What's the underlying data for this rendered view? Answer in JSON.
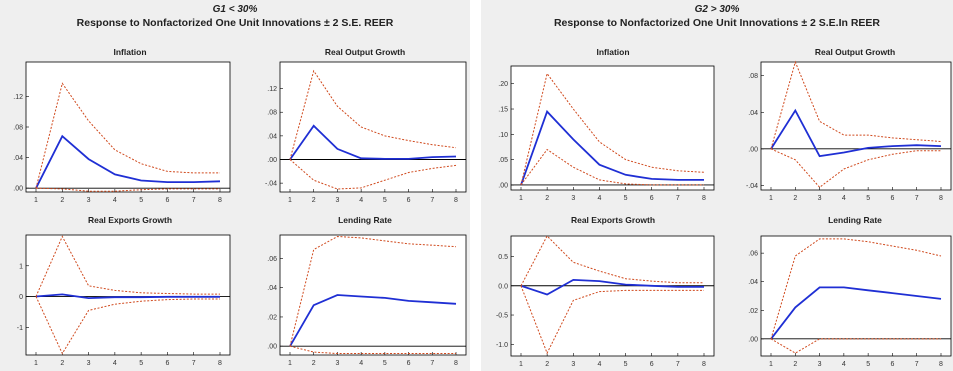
{
  "groups": [
    {
      "id": "left",
      "title": "G1 < 30%",
      "subtitle": "Response to Nonfactorized One Unit Innovations ± 2 S.E. REER"
    },
    {
      "id": "right",
      "title": "G2 > 30%",
      "subtitle": "Response to Nonfactorized One Unit Innovations ± 2 S.E.In REER"
    }
  ],
  "colors": {
    "response": "#1f2fd4",
    "band": "#d04a1e",
    "zero": "#000000",
    "frame": "#000000",
    "panel_bg": "#ffffff"
  },
  "chart_data": [
    {
      "group": "left",
      "title": "Inflation",
      "type": "line",
      "x": [
        1,
        2,
        3,
        4,
        5,
        6,
        7,
        8
      ],
      "ylim": [
        -0.005,
        0.165
      ],
      "yticks": [
        0,
        0.04,
        0.08,
        0.12
      ],
      "ytick_labels": [
        ".00",
        ".04",
        ".08",
        ".12"
      ],
      "xtick_labels": [
        "1",
        "2",
        "3",
        "4",
        "5",
        "6",
        "7",
        "8"
      ],
      "series": [
        {
          "role": "response",
          "values": [
            0.0,
            0.068,
            0.038,
            0.018,
            0.01,
            0.008,
            0.008,
            0.009
          ]
        },
        {
          "role": "upper",
          "values": [
            0.0,
            0.137,
            0.088,
            0.05,
            0.032,
            0.022,
            0.02,
            0.02
          ]
        },
        {
          "role": "lower",
          "values": [
            0.0,
            -0.001,
            -0.004,
            -0.004,
            -0.002,
            -0.001,
            -0.001,
            -0.001
          ]
        }
      ]
    },
    {
      "group": "left",
      "title": "Real Output Growth",
      "type": "line",
      "x": [
        1,
        2,
        3,
        4,
        5,
        6,
        7,
        8
      ],
      "ylim": [
        -0.055,
        0.165
      ],
      "yticks": [
        -0.04,
        0.0,
        0.04,
        0.08,
        0.12
      ],
      "ytick_labels": [
        "-.04",
        ".00",
        ".04",
        ".08",
        ".12"
      ],
      "xtick_labels": [
        "1",
        "2",
        "3",
        "4",
        "5",
        "6",
        "7",
        "8"
      ],
      "series": [
        {
          "role": "response",
          "values": [
            0.0,
            0.057,
            0.018,
            0.002,
            0.001,
            0.001,
            0.004,
            0.005
          ]
        },
        {
          "role": "upper",
          "values": [
            0.0,
            0.15,
            0.09,
            0.055,
            0.04,
            0.032,
            0.025,
            0.02
          ]
        },
        {
          "role": "lower",
          "values": [
            0.0,
            -0.035,
            -0.05,
            -0.048,
            -0.035,
            -0.022,
            -0.015,
            -0.01
          ]
        }
      ]
    },
    {
      "group": "left",
      "title": "Real Exports Growth",
      "type": "line",
      "x": [
        1,
        2,
        3,
        4,
        5,
        6,
        7,
        8
      ],
      "ylim": [
        -1.9,
        2.0
      ],
      "yticks": [
        -1,
        0,
        1
      ],
      "ytick_labels": [
        "-1",
        "0",
        "1"
      ],
      "xtick_labels": [
        "1",
        "2",
        "3",
        "4",
        "5",
        "6",
        "7",
        "8"
      ],
      "series": [
        {
          "role": "response",
          "values": [
            0.0,
            0.07,
            -0.05,
            -0.02,
            -0.02,
            -0.01,
            -0.01,
            -0.01
          ]
        },
        {
          "role": "upper",
          "values": [
            0.0,
            1.95,
            0.35,
            0.2,
            0.12,
            0.1,
            0.08,
            0.08
          ]
        },
        {
          "role": "lower",
          "values": [
            0.0,
            -1.85,
            -0.45,
            -0.25,
            -0.15,
            -0.1,
            -0.08,
            -0.08
          ]
        }
      ]
    },
    {
      "group": "left",
      "title": "Lending Rate",
      "type": "line",
      "x": [
        1,
        2,
        3,
        4,
        5,
        6,
        7,
        8
      ],
      "ylim": [
        -0.006,
        0.076
      ],
      "yticks": [
        0,
        0.02,
        0.04,
        0.06
      ],
      "ytick_labels": [
        ".00",
        ".02",
        ".04",
        ".06"
      ],
      "xtick_labels": [
        "1",
        "2",
        "3",
        "4",
        "5",
        "6",
        "7",
        "8"
      ],
      "series": [
        {
          "role": "response",
          "values": [
            0.0,
            0.028,
            0.035,
            0.034,
            0.033,
            0.031,
            0.03,
            0.029
          ]
        },
        {
          "role": "upper",
          "values": [
            0.0,
            0.066,
            0.075,
            0.074,
            0.072,
            0.07,
            0.069,
            0.068
          ]
        },
        {
          "role": "lower",
          "values": [
            0.0,
            -0.004,
            -0.005,
            -0.005,
            -0.005,
            -0.005,
            -0.005,
            -0.005
          ]
        }
      ]
    },
    {
      "group": "right",
      "title": "Inflation",
      "type": "line",
      "x": [
        1,
        2,
        3,
        4,
        5,
        6,
        7,
        8
      ],
      "ylim": [
        -0.01,
        0.235
      ],
      "yticks": [
        0.0,
        0.05,
        0.1,
        0.15,
        0.2
      ],
      "ytick_labels": [
        ".00",
        ".05",
        ".10",
        ".15",
        ".20"
      ],
      "xtick_labels": [
        "1",
        "2",
        "3",
        "4",
        "5",
        "6",
        "7",
        "8"
      ],
      "series": [
        {
          "role": "response",
          "values": [
            0.0,
            0.145,
            0.09,
            0.04,
            0.02,
            0.012,
            0.01,
            0.01
          ]
        },
        {
          "role": "upper",
          "values": [
            0.0,
            0.22,
            0.15,
            0.085,
            0.05,
            0.035,
            0.028,
            0.025
          ]
        },
        {
          "role": "lower",
          "values": [
            0.0,
            0.07,
            0.035,
            0.01,
            0.002,
            0.0,
            0.0,
            0.0
          ]
        }
      ]
    },
    {
      "group": "right",
      "title": "Real Output Growth",
      "type": "line",
      "x": [
        1,
        2,
        3,
        4,
        5,
        6,
        7,
        8
      ],
      "ylim": [
        -0.045,
        0.095
      ],
      "yticks": [
        -0.04,
        0.0,
        0.04,
        0.08
      ],
      "ytick_labels": [
        "-.04",
        ".00",
        ".04",
        ".08"
      ],
      "xtick_labels": [
        "1",
        "2",
        "3",
        "4",
        "5",
        "6",
        "7",
        "8"
      ],
      "series": [
        {
          "role": "response",
          "values": [
            0.0,
            0.042,
            -0.008,
            -0.004,
            0.001,
            0.003,
            0.004,
            0.003
          ]
        },
        {
          "role": "upper",
          "values": [
            0.0,
            0.095,
            0.03,
            0.015,
            0.015,
            0.012,
            0.01,
            0.008
          ]
        },
        {
          "role": "lower",
          "values": [
            0.0,
            -0.012,
            -0.042,
            -0.022,
            -0.012,
            -0.006,
            -0.002,
            -0.002
          ]
        }
      ]
    },
    {
      "group": "right",
      "title": "Real Exports Growth",
      "type": "line",
      "x": [
        1,
        2,
        3,
        4,
        5,
        6,
        7,
        8
      ],
      "ylim": [
        -1.2,
        0.85
      ],
      "yticks": [
        -1.0,
        -0.5,
        0.0,
        0.5
      ],
      "ytick_labels": [
        "-1.0",
        "-0.5",
        "0.0",
        "0.5"
      ],
      "xtick_labels": [
        "1",
        "2",
        "3",
        "4",
        "5",
        "6",
        "7",
        "8"
      ],
      "series": [
        {
          "role": "response",
          "values": [
            0.0,
            -0.15,
            0.1,
            0.08,
            0.02,
            0.0,
            -0.02,
            -0.02
          ]
        },
        {
          "role": "upper",
          "values": [
            0.0,
            0.85,
            0.4,
            0.25,
            0.12,
            0.08,
            0.05,
            0.05
          ]
        },
        {
          "role": "lower",
          "values": [
            0.0,
            -1.15,
            -0.25,
            -0.1,
            -0.08,
            -0.08,
            -0.08,
            -0.08
          ]
        }
      ]
    },
    {
      "group": "right",
      "title": "Lending Rate",
      "type": "line",
      "x": [
        1,
        2,
        3,
        4,
        5,
        6,
        7,
        8
      ],
      "ylim": [
        -0.012,
        0.072
      ],
      "yticks": [
        0.0,
        0.02,
        0.04,
        0.06
      ],
      "ytick_labels": [
        ".00",
        ".02",
        ".04",
        ".06"
      ],
      "xtick_labels": [
        "1",
        "2",
        "3",
        "4",
        "5",
        "6",
        "7",
        "8"
      ],
      "series": [
        {
          "role": "response",
          "values": [
            0.0,
            0.022,
            0.036,
            0.036,
            0.034,
            0.032,
            0.03,
            0.028
          ]
        },
        {
          "role": "upper",
          "values": [
            0.0,
            0.058,
            0.07,
            0.07,
            0.068,
            0.065,
            0.062,
            0.058
          ]
        },
        {
          "role": "lower",
          "values": [
            0.0,
            -0.01,
            0.0,
            0.0,
            0.0,
            0.0,
            0.0,
            0.0
          ]
        }
      ]
    }
  ]
}
